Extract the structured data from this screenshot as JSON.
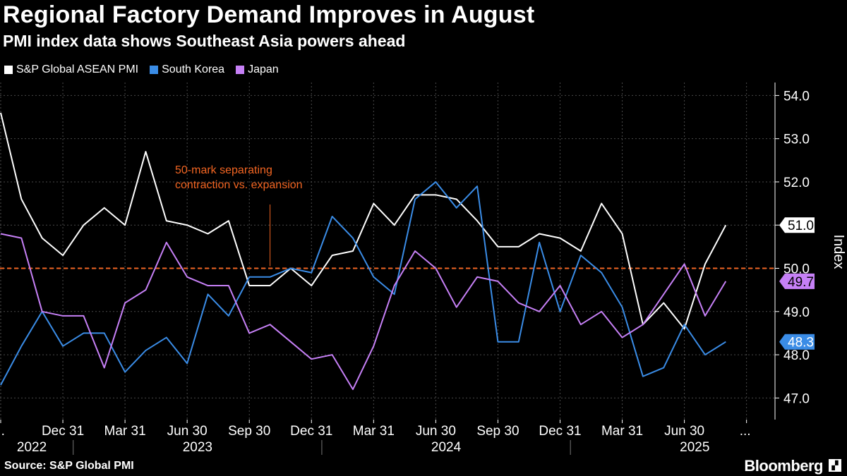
{
  "header": {
    "title": "Regional Factory Demand Improves in August",
    "subtitle": "PMI index data shows Southeast Asia powers ahead"
  },
  "footer": {
    "source": "Source: S&P Global PMI",
    "brand": "Bloomberg"
  },
  "chart_data": {
    "type": "line",
    "title": "Regional Factory Demand Improves in August",
    "subtitle": "PMI index data shows Southeast Asia powers ahead",
    "ylabel": "Index",
    "xlabel": "",
    "ylim": [
      46.5,
      54.3
    ],
    "y_ticks": [
      47.0,
      48.0,
      49.0,
      50.0,
      51.0,
      52.0,
      53.0,
      54.0
    ],
    "y_tick_labels": [
      "47.0",
      "48.0",
      "49.0",
      "50.0",
      "51.0",
      "52.0",
      "53.0",
      "54.0"
    ],
    "grid": true,
    "legend_position": "top-left",
    "x_range_months": [
      0,
      37
    ],
    "x_ticks": [
      {
        "month": 0,
        "label": "..."
      },
      {
        "month": 3,
        "label": "Dec 31"
      },
      {
        "month": 6,
        "label": "Mar 31"
      },
      {
        "month": 9,
        "label": "Jun 30"
      },
      {
        "month": 12,
        "label": "Sep 30"
      },
      {
        "month": 15,
        "label": "Dec 31"
      },
      {
        "month": 18,
        "label": "Mar 31"
      },
      {
        "month": 21,
        "label": "Jun 30"
      },
      {
        "month": 24,
        "label": "Sep 30"
      },
      {
        "month": 27,
        "label": "Dec 31"
      },
      {
        "month": 30,
        "label": "Mar 31"
      },
      {
        "month": 33,
        "label": "Jun 30"
      },
      {
        "month": 36,
        "label": "..."
      }
    ],
    "years": [
      {
        "label": "2022",
        "center_month": 1.5,
        "divider_month": null
      },
      {
        "label": "2023",
        "center_month": 9.5,
        "divider_month": 3.5
      },
      {
        "label": "2024",
        "center_month": 21.5,
        "divider_month": 15.5
      },
      {
        "label": "2025",
        "center_month": 33.5,
        "divider_month": 27.5
      }
    ],
    "reference_line": {
      "value": 50.0,
      "color": "#f26522"
    },
    "annotation": {
      "lines": [
        "50-mark separating",
        "contraction vs. expansion"
      ],
      "month": 13,
      "color": "#f26522"
    },
    "series": [
      {
        "name": "S&P Global ASEAN PMI",
        "color": "#ffffff",
        "end_label": "51.0",
        "values": [
          53.6,
          51.6,
          50.7,
          50.3,
          51.0,
          51.4,
          51.0,
          52.7,
          51.1,
          51.0,
          50.8,
          51.1,
          49.6,
          49.6,
          50.0,
          49.6,
          50.3,
          50.4,
          51.5,
          51.0,
          51.7,
          51.7,
          51.6,
          51.1,
          50.5,
          50.5,
          50.8,
          50.7,
          50.4,
          51.5,
          50.8,
          48.7,
          49.2,
          48.6,
          50.1,
          51.0
        ]
      },
      {
        "name": "South Korea",
        "color": "#3a8ce6",
        "end_label": "48.3",
        "values": [
          47.3,
          48.2,
          49.0,
          48.2,
          48.5,
          48.5,
          47.6,
          48.1,
          48.4,
          47.8,
          49.4,
          48.9,
          49.8,
          49.8,
          50.0,
          49.9,
          51.2,
          50.7,
          49.8,
          49.4,
          51.6,
          52.0,
          51.4,
          51.9,
          48.3,
          48.3,
          50.6,
          49.0,
          50.3,
          49.9,
          49.1,
          47.5,
          47.7,
          48.7,
          48.0,
          48.3
        ]
      },
      {
        "name": "Japan",
        "color": "#c680f6",
        "end_label": "49.7",
        "values": [
          50.8,
          50.7,
          49.0,
          48.9,
          48.9,
          47.7,
          49.2,
          49.5,
          50.6,
          49.8,
          49.6,
          49.6,
          48.5,
          48.7,
          48.3,
          47.9,
          48.0,
          47.2,
          48.2,
          49.6,
          50.4,
          50.0,
          49.1,
          49.8,
          49.7,
          49.2,
          49.0,
          49.6,
          48.7,
          49.0,
          48.4,
          48.7,
          49.4,
          50.1,
          48.9,
          49.7
        ]
      }
    ]
  }
}
